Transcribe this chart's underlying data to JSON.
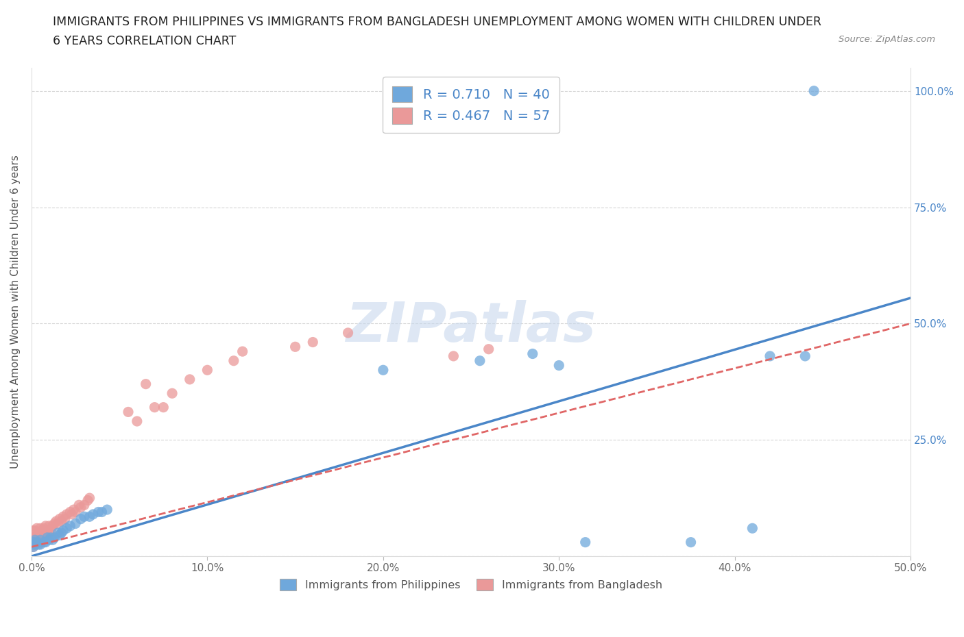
{
  "title_line1": "IMMIGRANTS FROM PHILIPPINES VS IMMIGRANTS FROM BANGLADESH UNEMPLOYMENT AMONG WOMEN WITH CHILDREN UNDER",
  "title_line2": "6 YEARS CORRELATION CHART",
  "source": "Source: ZipAtlas.com",
  "ylabel": "Unemployment Among Women with Children Under 6 years",
  "xlim": [
    0.0,
    0.5
  ],
  "ylim": [
    0.0,
    1.05
  ],
  "xticks": [
    0.0,
    0.1,
    0.2,
    0.3,
    0.4,
    0.5
  ],
  "xticklabels": [
    "0.0%",
    "10.0%",
    "20.0%",
    "30.0%",
    "40.0%",
    "50.0%"
  ],
  "yticks": [
    0.0,
    0.25,
    0.5,
    0.75,
    1.0
  ],
  "yticklabels": [
    "",
    "25.0%",
    "50.0%",
    "75.0%",
    "100.0%"
  ],
  "legend_label1": "Immigrants from Philippines",
  "legend_label2": "Immigrants from Bangladesh",
  "R1": 0.71,
  "N1": 40,
  "R2": 0.467,
  "N2": 57,
  "color1": "#6fa8dc",
  "color2": "#ea9999",
  "line1_color": "#4a86c8",
  "line2_color": "#e06666",
  "line1_x0": 0.0,
  "line1_y0": 0.0,
  "line1_x1": 0.5,
  "line1_y1": 0.555,
  "line2_x0": 0.0,
  "line2_y0": 0.02,
  "line2_x1": 0.5,
  "line2_y1": 0.5,
  "ph_x": [
    0.001,
    0.001,
    0.001,
    0.002,
    0.002,
    0.003,
    0.004,
    0.005,
    0.005,
    0.007,
    0.008,
    0.009,
    0.01,
    0.011,
    0.012,
    0.013,
    0.015,
    0.016,
    0.017,
    0.018,
    0.02,
    0.022,
    0.025,
    0.028,
    0.03,
    0.033,
    0.035,
    0.038,
    0.04,
    0.043,
    0.2,
    0.255,
    0.285,
    0.3,
    0.315,
    0.375,
    0.41,
    0.42,
    0.44,
    0.445
  ],
  "ph_y": [
    0.02,
    0.025,
    0.03,
    0.025,
    0.035,
    0.03,
    0.025,
    0.025,
    0.035,
    0.03,
    0.03,
    0.04,
    0.035,
    0.04,
    0.035,
    0.04,
    0.05,
    0.045,
    0.05,
    0.055,
    0.06,
    0.065,
    0.07,
    0.08,
    0.085,
    0.085,
    0.09,
    0.095,
    0.095,
    0.1,
    0.4,
    0.42,
    0.435,
    0.41,
    0.03,
    0.03,
    0.06,
    0.43,
    0.43,
    1.0
  ],
  "bd_x": [
    0.001,
    0.001,
    0.001,
    0.002,
    0.002,
    0.002,
    0.003,
    0.003,
    0.003,
    0.004,
    0.004,
    0.005,
    0.005,
    0.005,
    0.006,
    0.006,
    0.007,
    0.007,
    0.008,
    0.008,
    0.009,
    0.01,
    0.01,
    0.011,
    0.012,
    0.013,
    0.014,
    0.015,
    0.016,
    0.017,
    0.018,
    0.019,
    0.02,
    0.022,
    0.023,
    0.024,
    0.025,
    0.027,
    0.028,
    0.03,
    0.032,
    0.033,
    0.055,
    0.06,
    0.065,
    0.07,
    0.075,
    0.08,
    0.09,
    0.1,
    0.115,
    0.12,
    0.15,
    0.16,
    0.18,
    0.24,
    0.26
  ],
  "bd_y": [
    0.02,
    0.04,
    0.055,
    0.025,
    0.04,
    0.055,
    0.03,
    0.045,
    0.06,
    0.035,
    0.05,
    0.03,
    0.045,
    0.06,
    0.04,
    0.055,
    0.04,
    0.06,
    0.045,
    0.065,
    0.055,
    0.05,
    0.065,
    0.055,
    0.065,
    0.07,
    0.075,
    0.07,
    0.08,
    0.075,
    0.085,
    0.08,
    0.09,
    0.095,
    0.09,
    0.1,
    0.095,
    0.11,
    0.105,
    0.11,
    0.12,
    0.125,
    0.31,
    0.29,
    0.37,
    0.32,
    0.32,
    0.35,
    0.38,
    0.4,
    0.42,
    0.44,
    0.45,
    0.46,
    0.48,
    0.43,
    0.445
  ]
}
